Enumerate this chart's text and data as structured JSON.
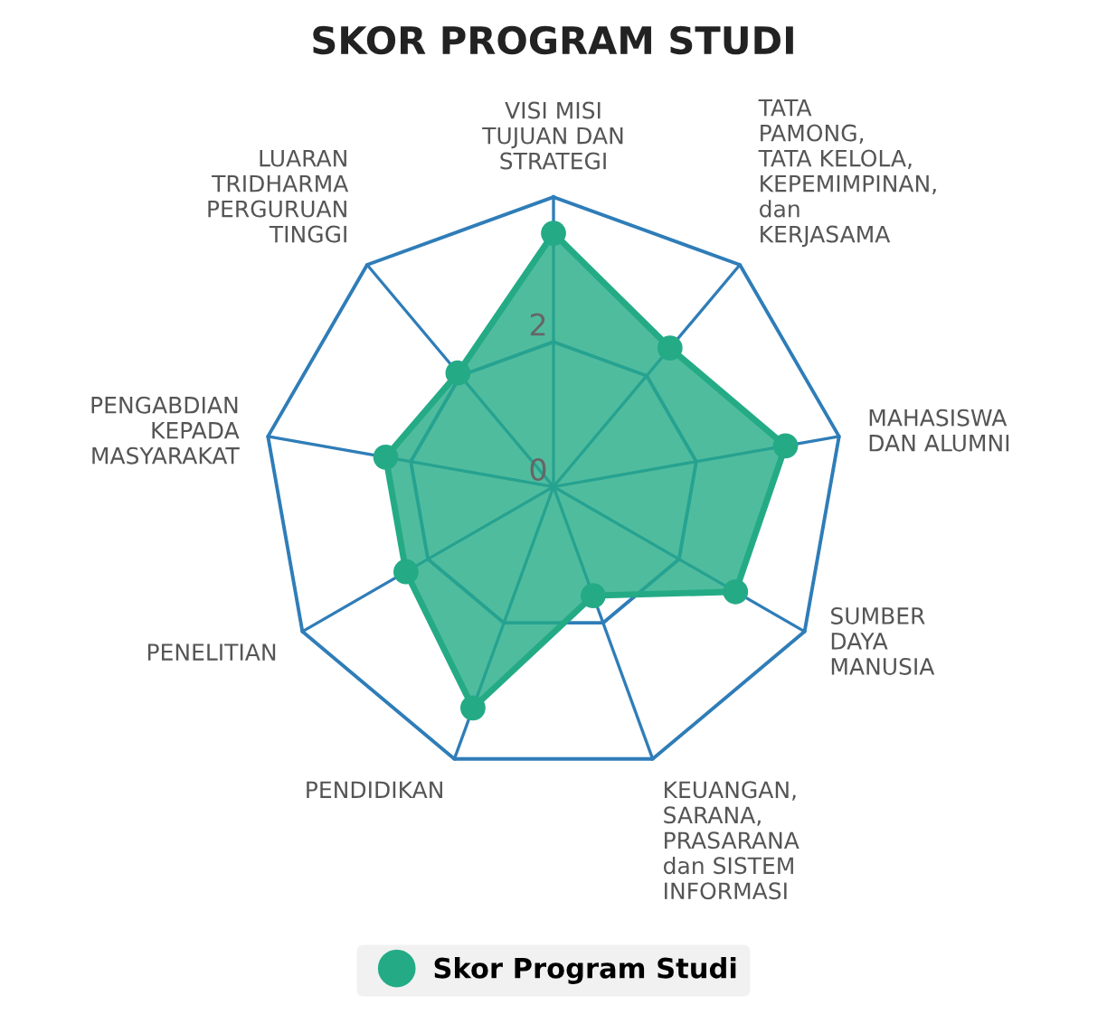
{
  "chart_data": {
    "type": "radar",
    "title": "SKOR PROGRAM STUDI",
    "categories": [
      "VISI MISI\nTUJUAN DAN\nSTRATEGI",
      "TATA\nPAMONG,\nTATA KELOLA,\nKEPEMIMPINAN,\ndan\nKERJASAMA",
      "MAHASISWA\nDAN ALUMNI",
      "SUMBER\nDAYA\nMANUSIA",
      "KEUANGAN,\nSARANA,\nPRASARANA\ndan SISTEM\nINFORMASI",
      "PENDIDIKAN",
      "PENELITIAN",
      "PENGABDIAN\nKEPADA\nMASYARAKAT",
      "LUARAN\nTRIDHARMA\nPERGURUAN\nTINGGI"
    ],
    "series": [
      {
        "name": "Skor Program Studi",
        "color": "#24ab86",
        "values": [
          3.5,
          2.5,
          3.25,
          2.9,
          1.6,
          3.25,
          2.35,
          2.35,
          2.05
        ]
      }
    ],
    "ylim": [
      0,
      4
    ],
    "yticks": [
      0,
      2
    ],
    "marker": "circle",
    "legend": "bottom"
  }
}
